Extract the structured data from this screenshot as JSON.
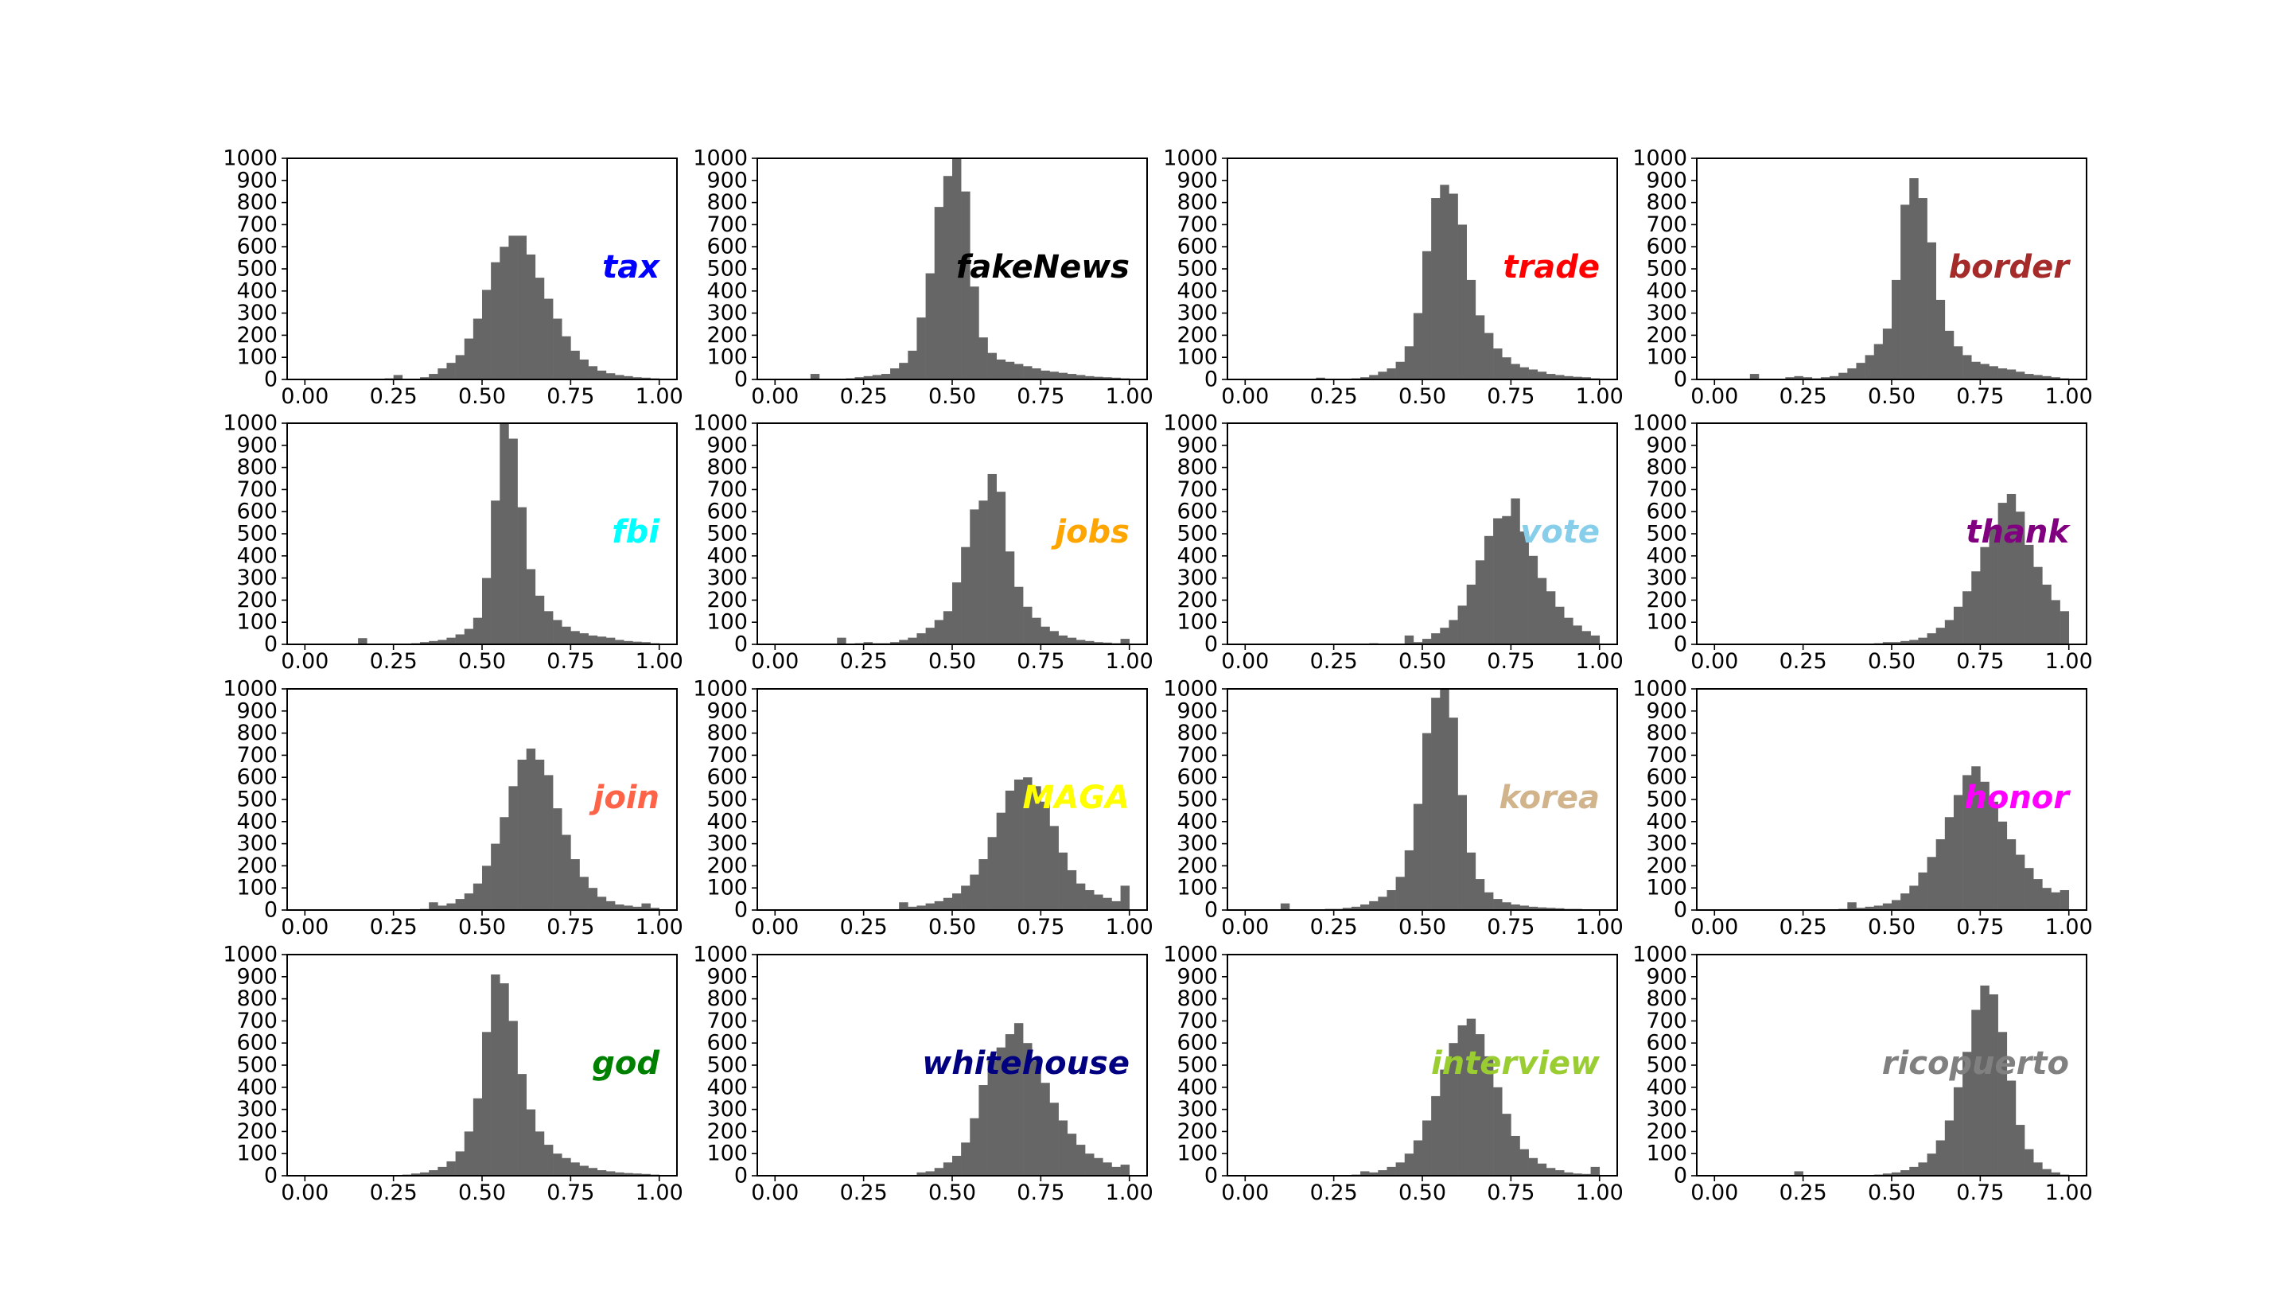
{
  "chart_data": {
    "type": "bar",
    "subtype": "histogram-grid",
    "bar_color": "#666666",
    "grid": false,
    "xlim": [
      -0.05,
      1.05
    ],
    "ylim": [
      0,
      1000
    ],
    "xticks": [
      "0.00",
      "0.25",
      "0.50",
      "0.75",
      "1.00"
    ],
    "yticks": [
      "0",
      "100",
      "200",
      "300",
      "400",
      "500",
      "600",
      "700",
      "800",
      "900",
      "1000"
    ],
    "bin_start": 0.0,
    "bin_width": 0.025,
    "panels": [
      {
        "word": "tax",
        "color": "#0000ff",
        "values": [
          0,
          0,
          0,
          0,
          0,
          0,
          0,
          2,
          0,
          5,
          20,
          0,
          0,
          10,
          25,
          50,
          75,
          110,
          185,
          275,
          405,
          530,
          600,
          650,
          650,
          565,
          460,
          365,
          275,
          195,
          130,
          90,
          60,
          40,
          28,
          20,
          15,
          10,
          8,
          5
        ]
      },
      {
        "word": "fakeNews",
        "color": "#000000",
        "values": [
          0,
          0,
          0,
          0,
          25,
          0,
          0,
          0,
          5,
          10,
          15,
          20,
          25,
          50,
          75,
          130,
          280,
          480,
          780,
          920,
          1000,
          850,
          420,
          190,
          120,
          90,
          80,
          70,
          60,
          50,
          40,
          35,
          30,
          25,
          20,
          15,
          12,
          10,
          8,
          5
        ]
      },
      {
        "word": "trade",
        "color": "#ff0000",
        "values": [
          0,
          0,
          0,
          0,
          0,
          0,
          0,
          0,
          8,
          0,
          0,
          0,
          5,
          10,
          20,
          35,
          50,
          80,
          150,
          300,
          580,
          820,
          880,
          840,
          700,
          450,
          290,
          210,
          140,
          100,
          70,
          55,
          45,
          35,
          25,
          20,
          15,
          12,
          10,
          5
        ]
      },
      {
        "word": "border",
        "color": "#a52a2a",
        "values": [
          0,
          0,
          0,
          0,
          25,
          0,
          0,
          0,
          10,
          15,
          10,
          5,
          10,
          15,
          30,
          50,
          75,
          110,
          160,
          230,
          450,
          790,
          910,
          820,
          620,
          360,
          220,
          150,
          110,
          80,
          70,
          60,
          50,
          45,
          35,
          25,
          20,
          15,
          10,
          5
        ]
      },
      {
        "word": "fbi",
        "color": "#00ffff",
        "values": [
          0,
          0,
          0,
          0,
          0,
          0,
          28,
          0,
          0,
          0,
          0,
          0,
          5,
          10,
          15,
          20,
          30,
          45,
          70,
          120,
          300,
          650,
          1000,
          930,
          620,
          340,
          220,
          150,
          110,
          80,
          60,
          50,
          40,
          35,
          30,
          20,
          15,
          12,
          10,
          5
        ]
      },
      {
        "word": "jobs",
        "color": "#ffa500",
        "values": [
          0,
          0,
          0,
          0,
          0,
          0,
          0,
          30,
          0,
          5,
          10,
          5,
          5,
          10,
          20,
          30,
          50,
          75,
          110,
          150,
          280,
          440,
          610,
          650,
          770,
          690,
          420,
          260,
          170,
          120,
          80,
          60,
          40,
          30,
          20,
          15,
          10,
          8,
          5,
          25
        ]
      },
      {
        "word": "vote",
        "color": "#87ceeb",
        "values": [
          0,
          0,
          0,
          0,
          0,
          0,
          0,
          0,
          0,
          0,
          0,
          0,
          0,
          0,
          5,
          0,
          0,
          0,
          40,
          10,
          25,
          50,
          75,
          110,
          175,
          270,
          380,
          490,
          570,
          580,
          660,
          510,
          400,
          300,
          240,
          170,
          120,
          85,
          60,
          40
        ]
      },
      {
        "word": "thank",
        "color": "#800080",
        "values": [
          0,
          0,
          0,
          0,
          0,
          0,
          0,
          0,
          0,
          0,
          0,
          0,
          0,
          0,
          0,
          0,
          0,
          0,
          5,
          10,
          10,
          15,
          20,
          30,
          50,
          75,
          110,
          170,
          240,
          330,
          440,
          530,
          640,
          680,
          600,
          450,
          350,
          270,
          200,
          150
        ]
      },
      {
        "word": "join",
        "color": "#ff6347",
        "values": [
          0,
          0,
          0,
          0,
          0,
          0,
          0,
          0,
          0,
          0,
          0,
          0,
          0,
          5,
          35,
          20,
          30,
          50,
          75,
          120,
          200,
          300,
          420,
          560,
          680,
          730,
          680,
          610,
          460,
          340,
          230,
          150,
          100,
          60,
          40,
          25,
          20,
          15,
          30,
          10
        ]
      },
      {
        "word": "MAGA",
        "color": "#ffff00",
        "values": [
          0,
          0,
          0,
          0,
          0,
          0,
          0,
          0,
          0,
          0,
          0,
          0,
          0,
          0,
          35,
          15,
          20,
          30,
          40,
          55,
          75,
          110,
          160,
          230,
          330,
          440,
          540,
          590,
          600,
          560,
          490,
          380,
          260,
          180,
          120,
          90,
          70,
          55,
          40,
          110
        ]
      },
      {
        "word": "korea",
        "color": "#d2b48c",
        "values": [
          0,
          0,
          0,
          0,
          30,
          0,
          0,
          0,
          0,
          5,
          5,
          10,
          15,
          25,
          40,
          60,
          90,
          150,
          270,
          480,
          800,
          960,
          1000,
          870,
          520,
          260,
          140,
          80,
          50,
          35,
          25,
          20,
          15,
          12,
          10,
          8,
          5,
          5,
          3,
          2
        ]
      },
      {
        "word": "honor",
        "color": "#ff00ff",
        "values": [
          0,
          0,
          0,
          0,
          0,
          0,
          0,
          0,
          0,
          0,
          0,
          0,
          0,
          0,
          5,
          35,
          10,
          15,
          20,
          30,
          45,
          75,
          110,
          170,
          240,
          320,
          420,
          520,
          610,
          650,
          580,
          490,
          400,
          320,
          250,
          190,
          140,
          100,
          80,
          90
        ]
      },
      {
        "word": "god",
        "color": "#008000",
        "values": [
          0,
          0,
          0,
          0,
          0,
          0,
          0,
          0,
          0,
          0,
          0,
          5,
          10,
          15,
          25,
          40,
          65,
          110,
          200,
          350,
          650,
          910,
          870,
          700,
          460,
          300,
          200,
          140,
          100,
          80,
          60,
          45,
          35,
          25,
          20,
          15,
          12,
          10,
          8,
          5
        ]
      },
      {
        "word": "whitehouse",
        "color": "#000080",
        "values": [
          0,
          0,
          0,
          0,
          0,
          0,
          0,
          0,
          0,
          0,
          0,
          0,
          0,
          0,
          0,
          0,
          15,
          20,
          35,
          60,
          90,
          150,
          260,
          410,
          520,
          580,
          640,
          690,
          600,
          520,
          420,
          330,
          250,
          190,
          140,
          100,
          80,
          60,
          40,
          50
        ]
      },
      {
        "word": "interview",
        "color": "#9acd32",
        "values": [
          0,
          0,
          0,
          0,
          0,
          0,
          0,
          0,
          0,
          0,
          0,
          0,
          5,
          20,
          15,
          25,
          40,
          60,
          100,
          160,
          250,
          360,
          480,
          600,
          680,
          710,
          640,
          540,
          400,
          280,
          180,
          120,
          80,
          55,
          35,
          25,
          15,
          10,
          8,
          40
        ]
      },
      {
        "word": "ricopuerto",
        "color": "#808080",
        "values": [
          0,
          0,
          0,
          0,
          0,
          0,
          0,
          0,
          0,
          20,
          0,
          0,
          0,
          0,
          0,
          0,
          0,
          0,
          5,
          10,
          15,
          25,
          40,
          60,
          100,
          160,
          250,
          400,
          560,
          750,
          860,
          820,
          650,
          430,
          230,
          120,
          60,
          30,
          15,
          5
        ]
      }
    ]
  }
}
